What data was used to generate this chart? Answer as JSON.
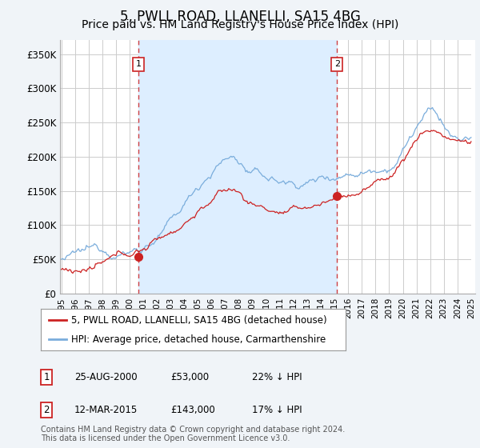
{
  "title": "5, PWLL ROAD, LLANELLI, SA15 4BG",
  "subtitle": "Price paid vs. HM Land Registry's House Price Index (HPI)",
  "title_fontsize": 12,
  "subtitle_fontsize": 10,
  "ylim": [
    0,
    370000
  ],
  "yticks": [
    0,
    50000,
    100000,
    150000,
    200000,
    250000,
    300000,
    350000
  ],
  "ytick_labels": [
    "£0",
    "£50K",
    "£100K",
    "£150K",
    "£200K",
    "£250K",
    "£300K",
    "£350K"
  ],
  "xlim_start": 1994.9,
  "xlim_end": 2025.3,
  "background_color": "#f0f4f8",
  "plot_bg_color": "#ffffff",
  "grid_color": "#cccccc",
  "hpi_color": "#7aaddc",
  "price_color": "#cc2222",
  "vline_color": "#cc2222",
  "purchase1_year": 2000.65,
  "purchase1_price": 53000,
  "purchase2_year": 2015.18,
  "purchase2_price": 143000,
  "shade_color": "#ddeeff",
  "hatch_color": "#bbbbbb",
  "legend_line1": "5, PWLL ROAD, LLANELLI, SA15 4BG (detached house)",
  "legend_line2": "HPI: Average price, detached house, Carmarthenshire",
  "table_row1_num": "1",
  "table_row1_date": "25-AUG-2000",
  "table_row1_price": "£53,000",
  "table_row1_hpi": "22% ↓ HPI",
  "table_row2_num": "2",
  "table_row2_date": "12-MAR-2015",
  "table_row2_price": "£143,000",
  "table_row2_hpi": "17% ↓ HPI",
  "footer": "Contains HM Land Registry data © Crown copyright and database right 2024.\nThis data is licensed under the Open Government Licence v3.0."
}
